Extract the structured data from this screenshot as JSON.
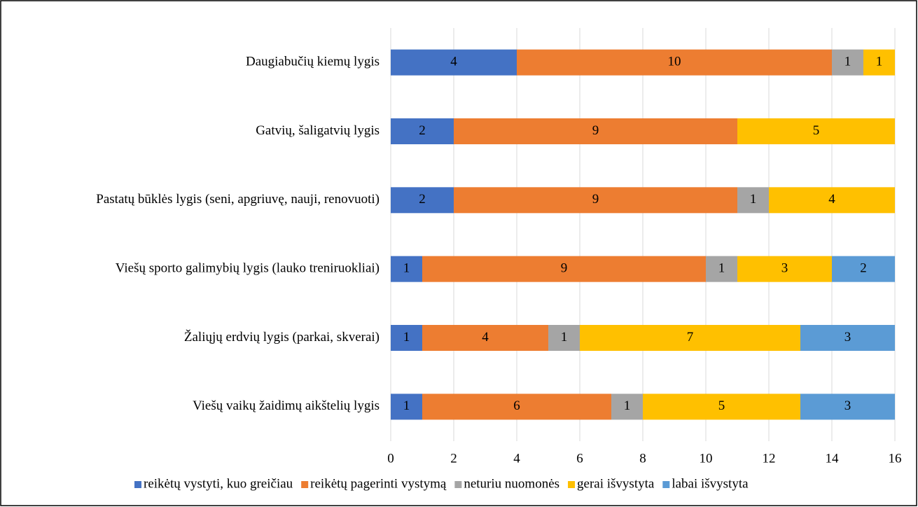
{
  "chart_data": {
    "type": "stacked-bar-horizontal",
    "categories": [
      "Daugiabučių kiemų lygis",
      "Gatvių, šaligatvių lygis",
      "Pastatų būklės lygis (seni, apgriuvę, nauji, renovuoti)",
      "Viešų sporto galimybių lygis (lauko treniruokliai)",
      "Žaliųjų erdvių lygis (parkai, skverai)",
      "Viešų vaikų žaidimų aikštelių lygis"
    ],
    "series": [
      {
        "name": "reikėtų vystyti, kuo greičiau",
        "color": "#4472c4",
        "values": [
          4,
          2,
          2,
          1,
          1,
          1
        ]
      },
      {
        "name": "reikėtų pagerinti vystymą",
        "color": "#ed7d31",
        "values": [
          10,
          9,
          9,
          9,
          4,
          6
        ]
      },
      {
        "name": "neturiu nuomonės",
        "color": "#a5a5a5",
        "values": [
          1,
          null,
          1,
          1,
          1,
          1
        ]
      },
      {
        "name": "gerai išvystyta",
        "color": "#ffc000",
        "values": [
          1,
          5,
          4,
          3,
          7,
          5
        ]
      },
      {
        "name": "labai išvystyta",
        "color": "#5b9bd5",
        "values": [
          null,
          null,
          null,
          2,
          3,
          3
        ]
      }
    ],
    "xlim": [
      0,
      16
    ],
    "xticks": [
      0,
      2,
      4,
      6,
      8,
      10,
      12,
      14,
      16
    ],
    "grid": true,
    "legend": "bottom"
  }
}
